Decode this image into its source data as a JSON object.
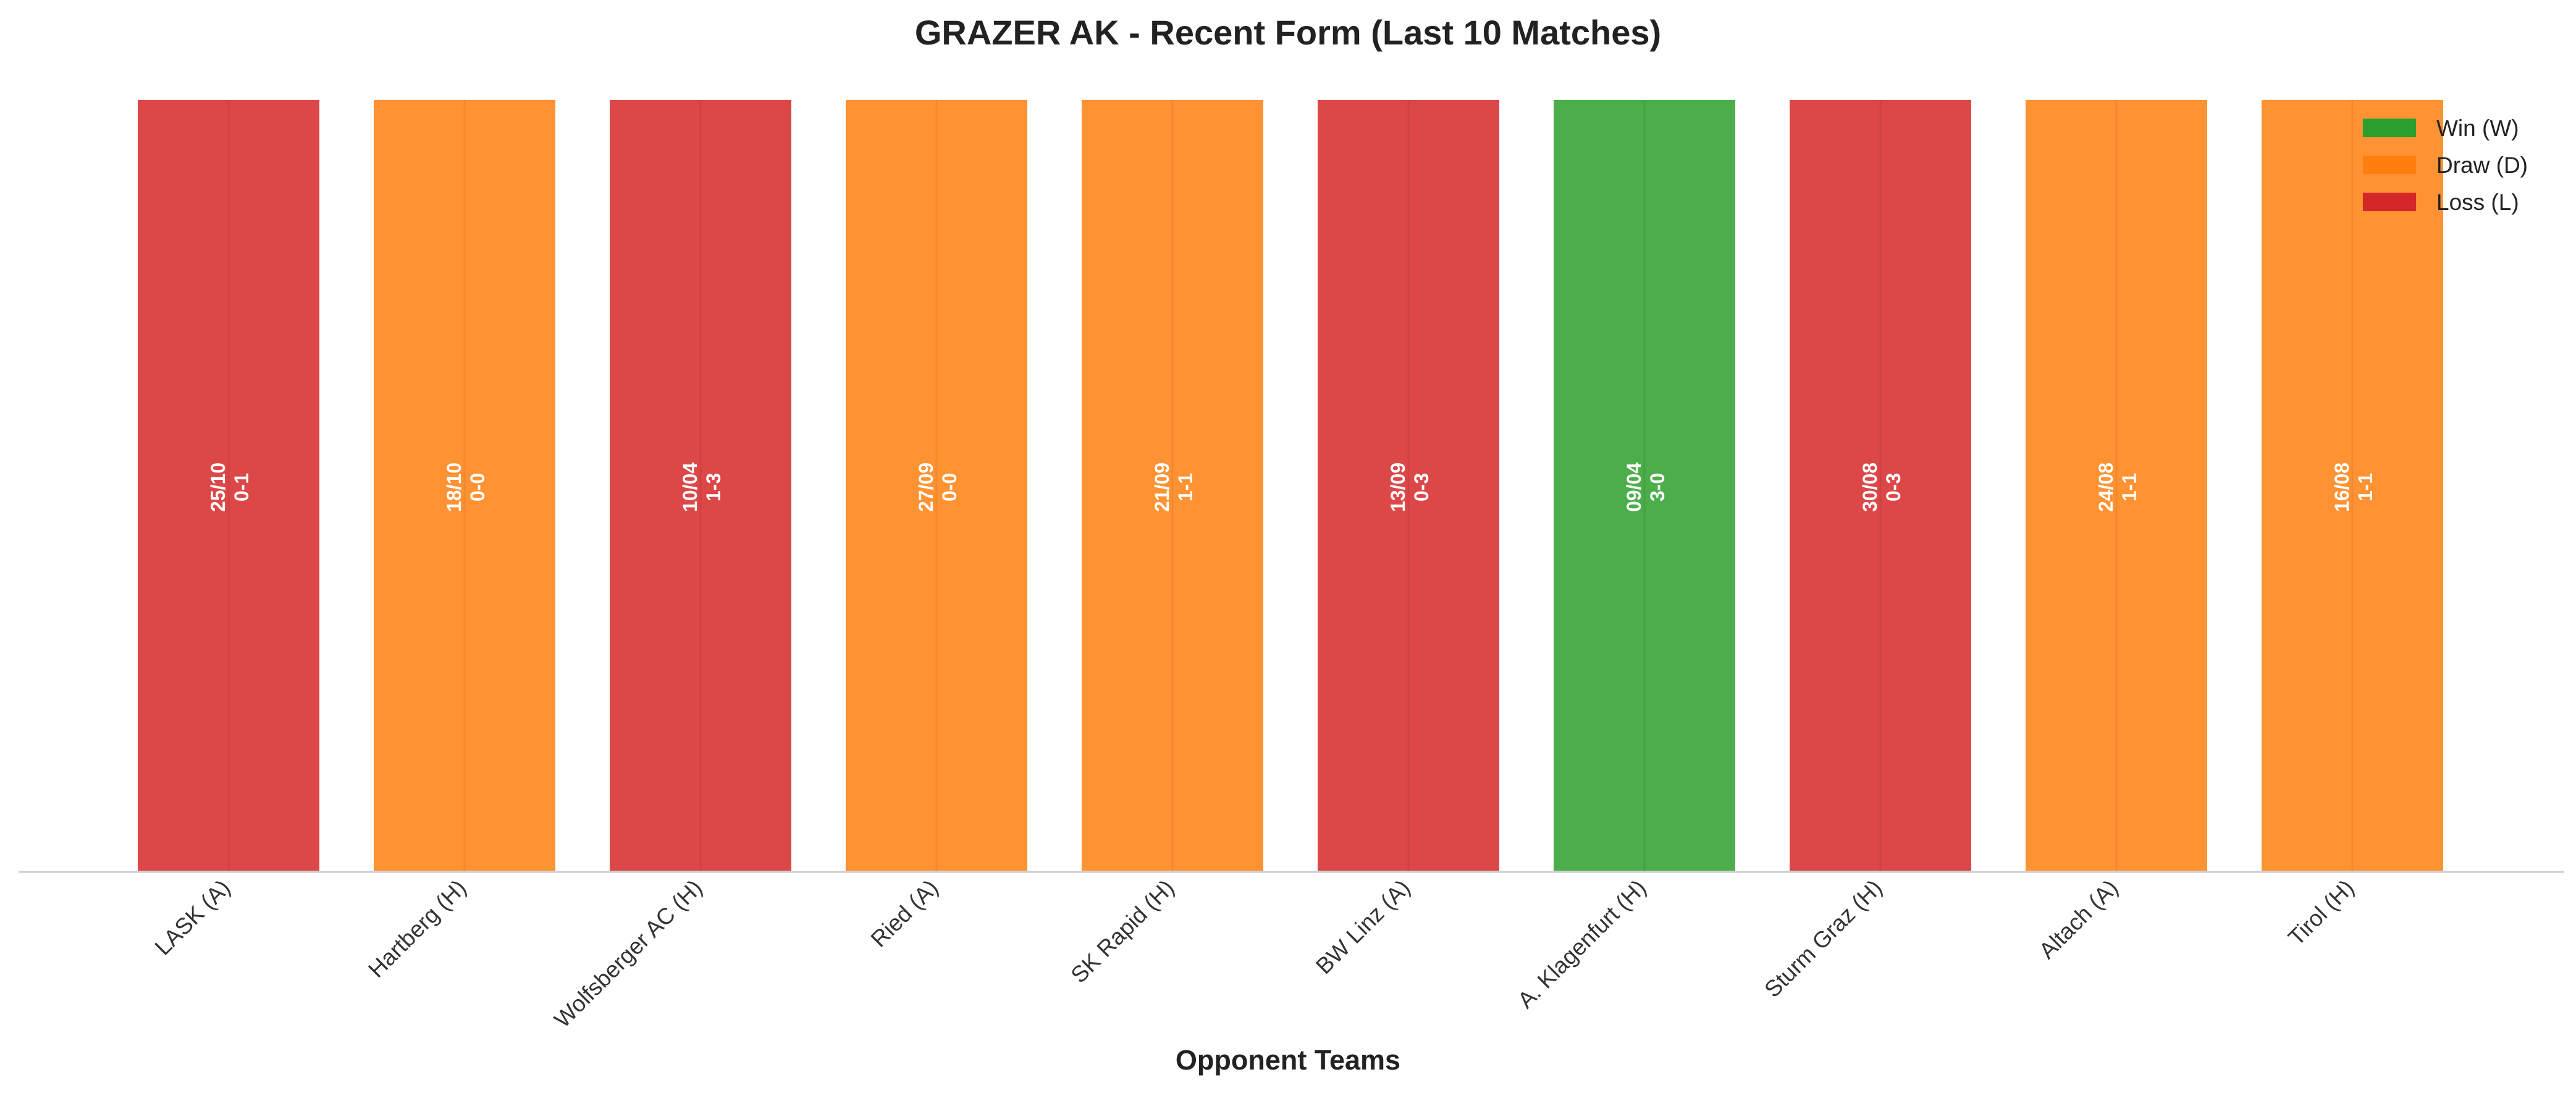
{
  "chart_data": {
    "type": "bar",
    "title": "GRAZER AK - Recent Form (Last 10 Matches)",
    "xlabel": "Opponent Teams",
    "ylabel": "",
    "categories": [
      "LASK (A)",
      "Hartberg (H)",
      "Wolfsberger AC (H)",
      "Ried (A)",
      "SK Rapid (H)",
      "BW Linz (A)",
      "A. Klagenfurt (H)",
      "Sturm Graz (H)",
      "Altach (A)",
      "Tirol (H)"
    ],
    "values": [
      1,
      1,
      1,
      1,
      1,
      1,
      1,
      1,
      1,
      1
    ],
    "ylim": [
      0,
      1
    ],
    "results": [
      "L",
      "D",
      "L",
      "D",
      "D",
      "L",
      "W",
      "L",
      "D",
      "D"
    ],
    "dates": [
      "25/10",
      "18/10",
      "10/04",
      "27/09",
      "21/09",
      "13/09",
      "09/04",
      "30/08",
      "24/08",
      "16/08"
    ],
    "scores": [
      "0-1",
      "0-0",
      "1-3",
      "0-0",
      "1-1",
      "0-3",
      "3-0",
      "0-3",
      "1-1",
      "1-1"
    ],
    "legend": [
      {
        "key": "W",
        "label": "Win (W)",
        "color": "#2ca02c"
      },
      {
        "key": "D",
        "label": "Draw (D)",
        "color": "#ff7f0e"
      },
      {
        "key": "L",
        "label": "Loss (L)",
        "color": "#d62728"
      }
    ],
    "legend_position": "top-right",
    "grid": false
  }
}
